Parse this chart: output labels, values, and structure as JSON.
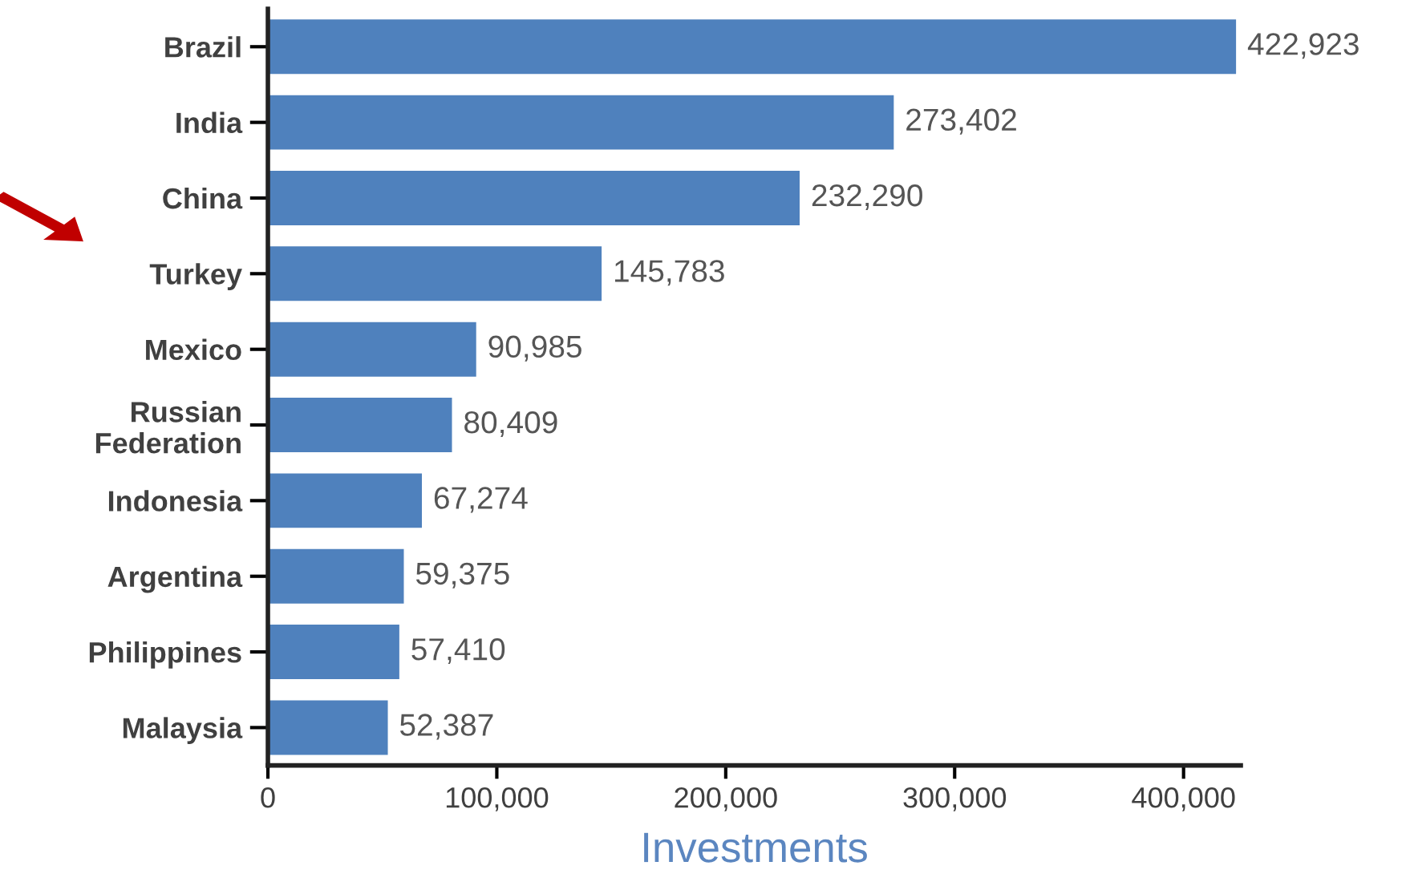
{
  "chart_data": {
    "type": "bar",
    "orientation": "horizontal",
    "xlabel": "Investments",
    "categories": [
      "Brazil",
      "India",
      "China",
      "Turkey",
      "Mexico",
      "Russian\nFederation",
      "Indonesia",
      "Argentina",
      "Philippines",
      "Malaysia"
    ],
    "values": [
      422923,
      273402,
      232290,
      145783,
      90985,
      80409,
      67274,
      59375,
      57410,
      52387
    ],
    "color": "#4f81bd",
    "value_labels": [
      "422,923",
      "273,402",
      "232,290",
      "145,783",
      "90,985",
      "80,409",
      "67,274",
      "59,375",
      "57,410",
      "52,387"
    ],
    "xlim": [
      0,
      425000
    ],
    "xticks": [
      0,
      {
        "value": 100000,
        "label": "100,000"
      },
      {
        "value": 200000,
        "label": "200,000"
      },
      {
        "value": 300000,
        "label": "300,000"
      },
      {
        "value": 400000,
        "label": "400,000"
      }
    ],
    "grid": false,
    "legend": false
  }
}
